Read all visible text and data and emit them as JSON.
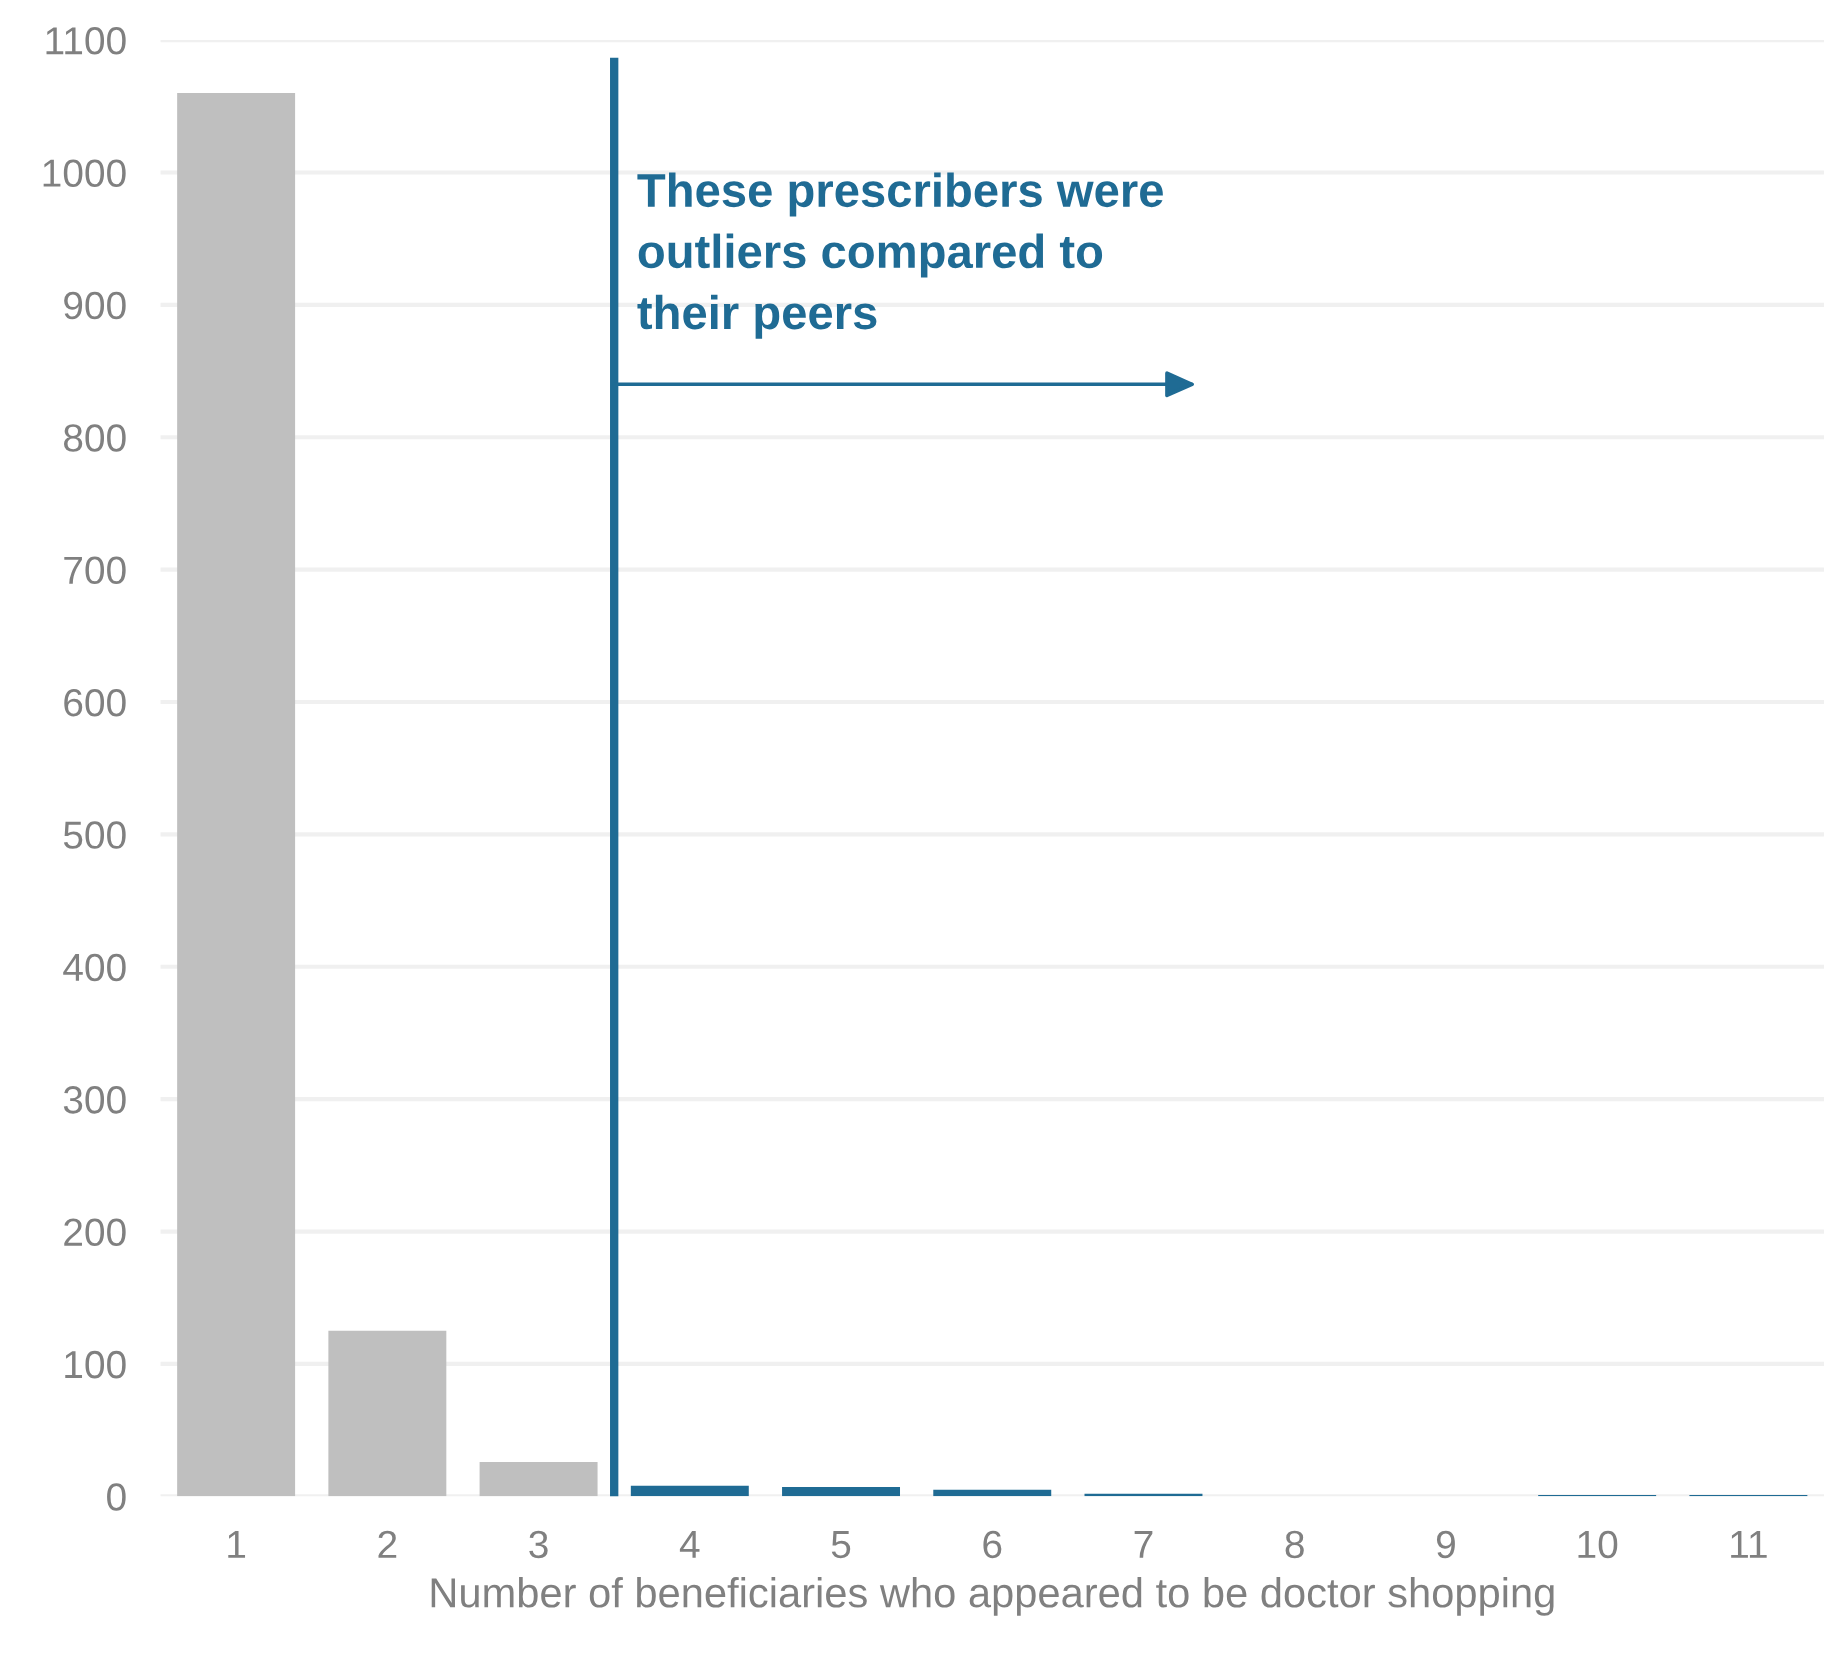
{
  "chart_data": {
    "type": "bar",
    "xlabel": "Number of beneficiaries who appeared to be doctor shopping",
    "x": [
      1,
      2,
      3,
      4,
      5,
      6,
      7,
      8,
      9,
      10,
      11
    ],
    "values": [
      1060,
      125,
      26,
      8,
      7,
      5,
      2,
      0,
      0,
      1,
      1
    ],
    "colors": [
      "#bfbfbf",
      "#bfbfbf",
      "#bfbfbf",
      "#1f6b94",
      "#1f6b94",
      "#1f6b94",
      "#1f6b94",
      "#1f6b94",
      "#1f6b94",
      "#1f6b94",
      "#1f6b94"
    ],
    "xlim": [
      0.5,
      11.5
    ],
    "xticks": [
      1,
      2,
      3,
      4,
      5,
      6,
      7,
      8,
      9,
      10,
      11
    ],
    "ylim": [
      0,
      1100
    ],
    "yticks": [
      0,
      100,
      200,
      300,
      400,
      500,
      600,
      700,
      800,
      900,
      1000,
      1100
    ],
    "grid": "y",
    "ref_lines": [
      {
        "axis": "x",
        "value": 3.5,
        "color": "#1f6b94"
      }
    ],
    "annotations": [
      "These prescribers were\noutliers compared to\ntheir peers"
    ]
  }
}
